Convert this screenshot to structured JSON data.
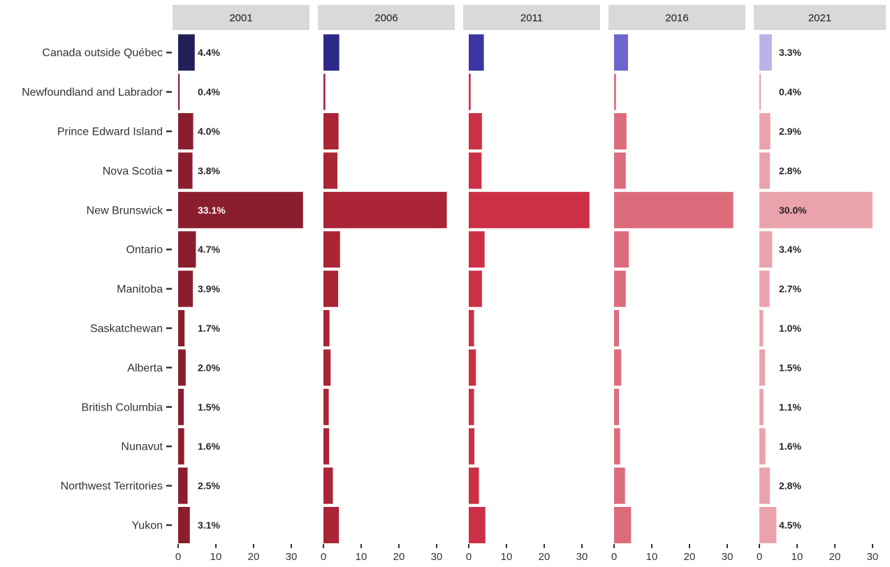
{
  "chart_data": {
    "type": "bar",
    "orientation": "horizontal",
    "facets": [
      "2001",
      "2006",
      "2011",
      "2016",
      "2021"
    ],
    "categories": [
      "Canada outside Québec",
      "Newfoundland and Labrador",
      "Prince Edward Island",
      "Nova Scotia",
      "New Brunswick",
      "Ontario",
      "Manitoba",
      "Saskatchewan",
      "Alberta",
      "British Columbia",
      "Nunavut",
      "Northwest Territories",
      "Yukon"
    ],
    "series": [
      {
        "facet": "2001",
        "values": [
          4.4,
          0.4,
          4.0,
          3.8,
          33.1,
          4.7,
          3.9,
          1.7,
          2.0,
          1.5,
          1.6,
          2.5,
          3.1
        ]
      },
      {
        "facet": "2006",
        "values": [
          4.2,
          0.5,
          4.0,
          3.7,
          32.7,
          4.4,
          3.9,
          1.6,
          1.9,
          1.4,
          1.5,
          2.5,
          4.1
        ]
      },
      {
        "facet": "2011",
        "values": [
          4.0,
          0.5,
          3.5,
          3.4,
          32.0,
          4.2,
          3.5,
          1.4,
          1.9,
          1.4,
          1.5,
          2.7,
          4.4
        ]
      },
      {
        "facet": "2016",
        "values": [
          3.7,
          0.5,
          3.3,
          3.1,
          31.6,
          3.9,
          3.1,
          1.3,
          1.9,
          1.3,
          1.6,
          2.9,
          4.5
        ]
      },
      {
        "facet": "2021",
        "values": [
          3.3,
          0.4,
          2.9,
          2.8,
          30.0,
          3.4,
          2.7,
          1.0,
          1.5,
          1.1,
          1.6,
          2.8,
          4.5
        ]
      }
    ],
    "bar_labels": {
      "2001": [
        "4.4%",
        "0.4%",
        "4.0%",
        "3.8%",
        "33.1%",
        "4.7%",
        "3.9%",
        "1.7%",
        "2.0%",
        "1.5%",
        "1.6%",
        "2.5%",
        "3.1%"
      ],
      "2021": [
        "3.3%",
        "0.4%",
        "2.9%",
        "2.8%",
        "30.0%",
        "3.4%",
        "2.7%",
        "1.0%",
        "1.5%",
        "1.1%",
        "1.6%",
        "2.8%",
        "4.5%"
      ]
    },
    "xticks": [
      0,
      10,
      20,
      30
    ],
    "xlim": [
      0,
      33
    ],
    "grid": false,
    "legend": "none",
    "colors": {
      "canada_outside_quebec": [
        "#22205a",
        "#2c2a86",
        "#3b36a4",
        "#6d66cf",
        "#b8b4e8"
      ],
      "provinces": [
        "#8b1e2e",
        "#aa2536",
        "#cc3044",
        "#dc6c7c",
        "#eaa3ad"
      ],
      "label_dark": "#262626",
      "label_light": "#ffffff"
    }
  }
}
